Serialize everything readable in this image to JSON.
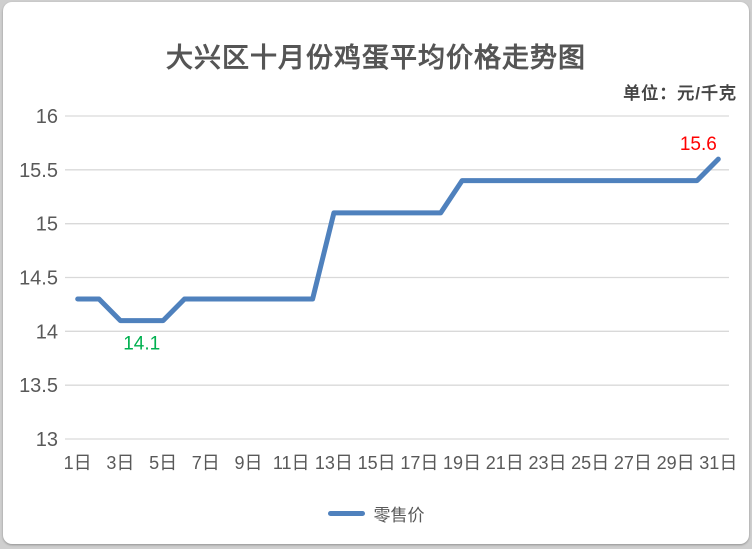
{
  "header": {
    "title": "大兴区十月份鸡蛋平均价格走势图",
    "unit_label": "单位：元/千克"
  },
  "legend": {
    "series_label": "零售价"
  },
  "chart_data": {
    "type": "line",
    "title": "大兴区十月份鸡蛋平均价格走势图",
    "unit": "元/千克",
    "x": [
      1,
      2,
      3,
      4,
      5,
      6,
      7,
      8,
      9,
      10,
      11,
      12,
      13,
      14,
      15,
      16,
      17,
      18,
      19,
      20,
      21,
      22,
      23,
      24,
      25,
      26,
      27,
      28,
      29,
      30,
      31
    ],
    "x_tick_labels": [
      "1日",
      "3日",
      "5日",
      "7日",
      "9日",
      "11日",
      "13日",
      "15日",
      "17日",
      "19日",
      "21日",
      "23日",
      "25日",
      "27日",
      "29日",
      "31日"
    ],
    "series": [
      {
        "name": "零售价",
        "color": "#4f81bd",
        "values": [
          14.3,
          14.3,
          14.1,
          14.1,
          14.1,
          14.3,
          14.3,
          14.3,
          14.3,
          14.3,
          14.3,
          14.3,
          15.1,
          15.1,
          15.1,
          15.1,
          15.1,
          15.1,
          15.4,
          15.4,
          15.4,
          15.4,
          15.4,
          15.4,
          15.4,
          15.4,
          15.4,
          15.4,
          15.4,
          15.4,
          15.6
        ]
      }
    ],
    "ylim": [
      13,
      16
    ],
    "yticks": [
      16,
      15.5,
      15,
      14.5,
      14,
      13.5,
      13
    ],
    "grid": "horizontal",
    "legend_position": "bottom",
    "annotations": [
      {
        "index": 3,
        "day": 4,
        "text": "14.1",
        "color": "#00b050",
        "placement": "below"
      },
      {
        "index": 30,
        "day": 31,
        "text": "15.6",
        "color": "#ff0000",
        "placement": "above-left"
      }
    ],
    "colors": {
      "line": "#4f81bd",
      "gridline": "#d9d9d9",
      "tick_text": "#595959",
      "title_text": "#555555",
      "low_label": "#00b050",
      "high_label": "#ff0000"
    }
  }
}
